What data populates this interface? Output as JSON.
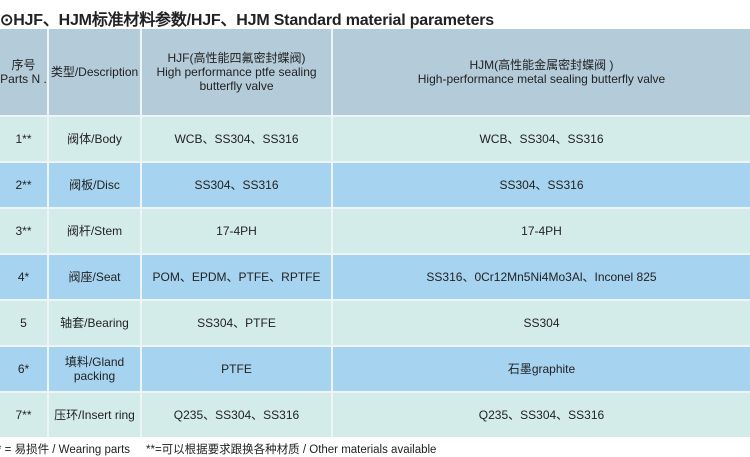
{
  "title": "⊙HJF、HJM标准材料参数/HJF、HJM Standard material parameters",
  "header": {
    "no_cn": "序号",
    "no_en": "Parts N .",
    "desc": "类型/Description",
    "hjf_cn": "HJF(高性能四氟密封蝶阀)",
    "hjf_en": "High performance ptfe sealing butterfly valve",
    "hjm_cn": "HJM(高性能金属密封蝶阀 )",
    "hjm_en": "High-performance metal sealing butterfly valve"
  },
  "rows": [
    {
      "no": "1**",
      "desc": "阀体/Body",
      "hjf": "WCB、SS304、SS316",
      "hjm": "WCB、SS304、SS316"
    },
    {
      "no": "2**",
      "desc": "阀板/Disc",
      "hjf": "SS304、SS316",
      "hjm": "SS304、SS316"
    },
    {
      "no": "3**",
      "desc": "阀杆/Stem",
      "hjf": "17-4PH",
      "hjm": "17-4PH"
    },
    {
      "no": "4*",
      "desc": "阀座/Seat",
      "hjf": "POM、EPDM、PTFE、RPTFE",
      "hjm": "SS316、0Cr12Mn5Ni4Mo3Al、Inconel 825"
    },
    {
      "no": "5",
      "desc": "轴套/Bearing",
      "hjf": "SS304、PTFE",
      "hjm": "SS304"
    },
    {
      "no": "6*",
      "desc": "填料/Gland packing",
      "hjf": "PTFE",
      "hjm": "石墨graphite"
    },
    {
      "no": "7**",
      "desc": "压环/Insert ring",
      "hjf": "Q235、SS304、SS316",
      "hjm": "Q235、SS304、SS316"
    }
  ],
  "footer": {
    "note1": "* = 易损件 / Wearing parts",
    "note2": "**=可以根据要求跟换各种材质 / Other materials available"
  },
  "colors": {
    "header": "#b4cbd9",
    "row_light": "#d4ece9",
    "row_blue": "#a6d3ef"
  }
}
